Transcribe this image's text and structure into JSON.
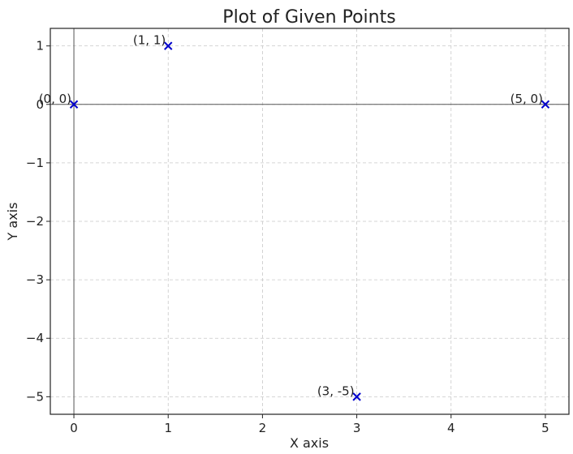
{
  "chart_data": {
    "type": "scatter",
    "title": "Plot of Given Points",
    "xlabel": "X axis",
    "ylabel": "Y axis",
    "xlim": [
      -0.25,
      5.25
    ],
    "ylim": [
      -5.3,
      1.3
    ],
    "xticks": [
      0,
      1,
      2,
      3,
      4,
      5
    ],
    "yticks": [
      1,
      0,
      -1,
      -2,
      -3,
      -4,
      -5
    ],
    "ytick_labels": [
      "1",
      "0",
      "−1",
      "−2",
      "−3",
      "−4",
      "−5"
    ],
    "grid": true,
    "reference_lines": {
      "x": 0,
      "y": 0
    },
    "marker": "x",
    "marker_color": "#0000cc",
    "points": [
      {
        "x": 0,
        "y": 0,
        "label": "(0, 0)"
      },
      {
        "x": 1,
        "y": 1,
        "label": "(1, 1)"
      },
      {
        "x": 5,
        "y": 0,
        "label": "(5, 0)"
      },
      {
        "x": 3,
        "y": -5,
        "label": "(3, -5)"
      }
    ]
  }
}
